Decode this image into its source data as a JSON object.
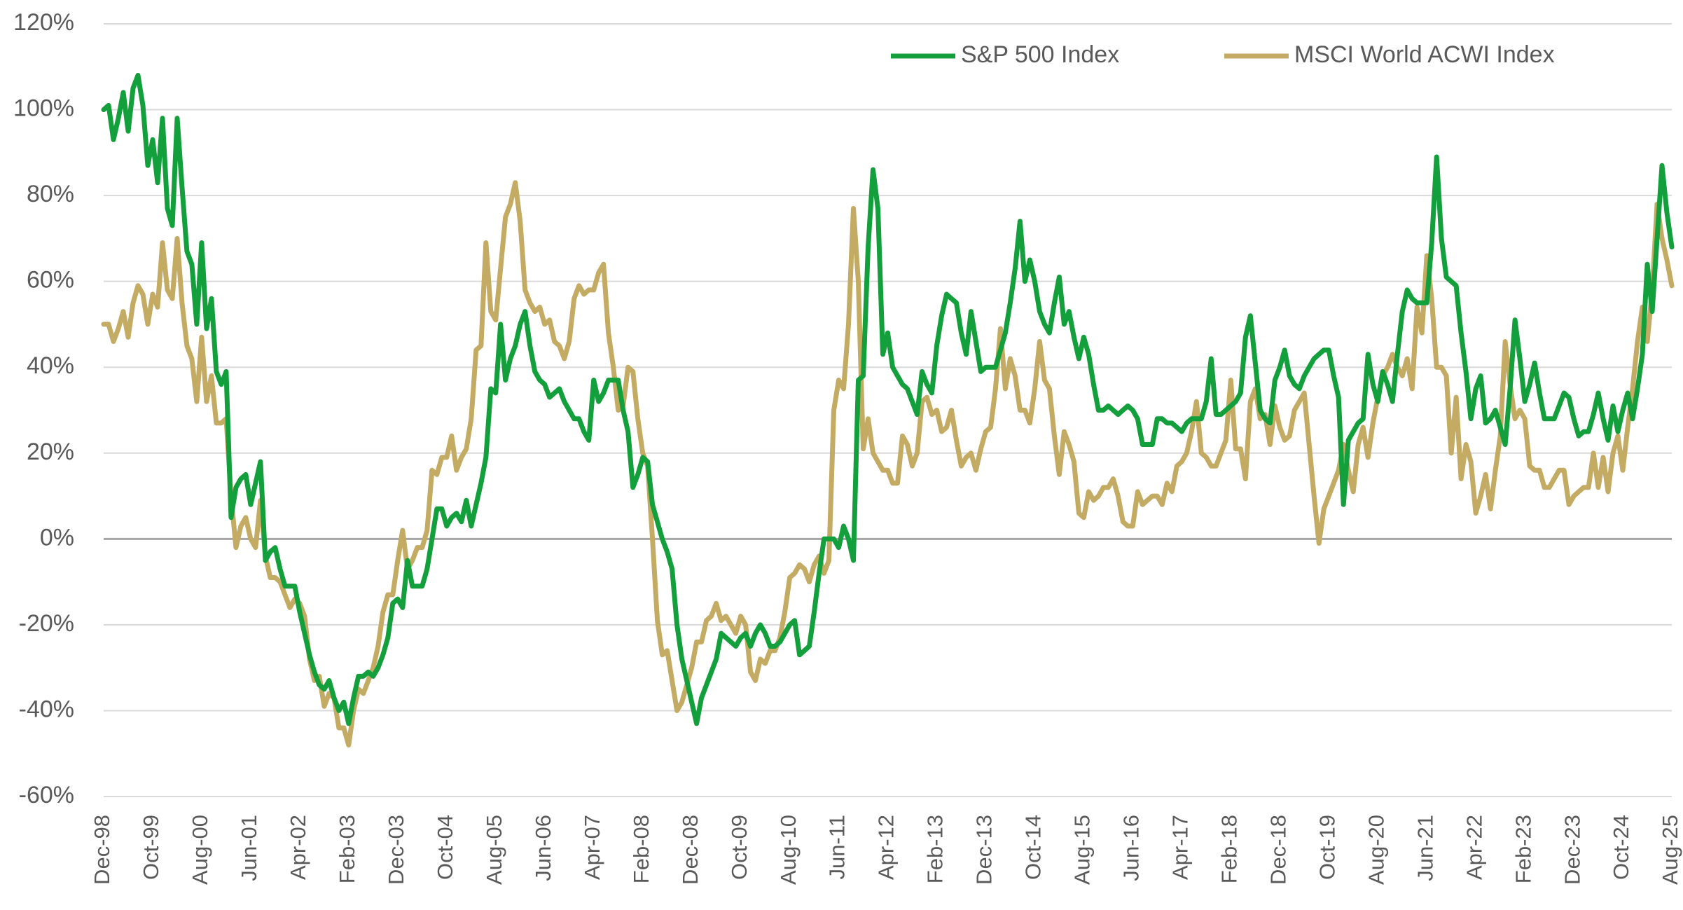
{
  "chart_data": {
    "type": "line",
    "title": "",
    "xlabel": "",
    "ylabel": "",
    "x_start": "Dec-98",
    "x_end": "Aug-25",
    "x_frequency": "monthly",
    "ylim": [
      -60,
      120
    ],
    "y_ticks": [
      120,
      100,
      80,
      60,
      40,
      20,
      0,
      -20,
      -40,
      -60
    ],
    "y_tick_labels": [
      "120%",
      "100%",
      "80%",
      "60%",
      "40%",
      "20%",
      "0%",
      "-20%",
      "-40%",
      "-60%"
    ],
    "x_tick_labels": [
      "Dec-98",
      "Oct-99",
      "Aug-00",
      "Jun-01",
      "Apr-02",
      "Feb-03",
      "Dec-03",
      "Oct-04",
      "Aug-05",
      "Jun-06",
      "Apr-07",
      "Feb-08",
      "Dec-08",
      "Oct-09",
      "Aug-10",
      "Jun-11",
      "Apr-12",
      "Feb-13",
      "Dec-13",
      "Oct-14",
      "Aug-15",
      "Jun-16",
      "Apr-17",
      "Feb-18",
      "Dec-18",
      "Oct-19",
      "Aug-20",
      "Jun-21",
      "Apr-22",
      "Feb-23",
      "Dec-23",
      "Oct-24",
      "Aug-25"
    ],
    "x_tick_interval_months": 10,
    "grid": "horizontal",
    "legend_position": "top-right",
    "zero_line": true,
    "series": [
      {
        "name": "S&P 500 Index",
        "color": "#13a03c",
        "values": [
          100,
          101,
          93,
          98,
          104,
          95,
          105,
          108,
          101,
          87,
          93,
          83,
          98,
          77,
          73,
          98,
          82,
          67,
          64,
          50,
          69,
          49,
          56,
          39,
          36,
          39,
          5,
          12,
          14,
          15,
          8,
          13,
          18,
          -5,
          -3,
          -2,
          -7,
          -11,
          -11,
          -11,
          -17,
          -22,
          -27,
          -31,
          -34,
          -35,
          -33,
          -37,
          -40,
          -38,
          -43,
          -37,
          -32,
          -32,
          -31,
          -32,
          -30,
          -27,
          -23,
          -15,
          -14,
          -16,
          -5,
          -11,
          -11,
          -11,
          -7,
          0,
          7,
          7,
          3,
          5,
          6,
          4,
          9,
          3,
          8,
          13,
          19,
          35,
          34,
          50,
          37,
          42,
          45,
          50,
          53,
          45,
          39,
          37,
          36,
          33,
          34,
          35,
          32,
          30,
          28,
          28,
          25,
          23,
          37,
          32,
          34,
          37,
          37,
          37,
          30,
          25,
          12,
          15,
          19,
          18,
          8,
          4,
          0,
          -3,
          -7,
          -20,
          -28,
          -33,
          -38,
          -43,
          -37,
          -34,
          -31,
          -28,
          -22,
          -23,
          -24,
          -25,
          -23,
          -22,
          -25,
          -22,
          -20,
          -22,
          -25,
          -25,
          -24,
          -22,
          -20,
          -19,
          -27,
          -26,
          -25,
          -17,
          -8,
          0,
          0,
          0,
          -2,
          3,
          0,
          -5,
          37,
          38,
          68,
          86,
          77,
          43,
          48,
          40,
          38,
          36,
          35,
          32,
          29,
          39,
          36,
          34,
          45,
          52,
          57,
          56,
          55,
          48,
          43,
          53,
          46,
          39,
          40,
          40,
          40,
          44,
          48,
          55,
          63,
          74,
          60,
          65,
          60,
          53,
          50,
          48,
          55,
          61,
          50,
          53,
          47,
          42,
          47,
          43,
          36,
          30,
          30,
          31,
          30,
          29,
          30,
          31,
          30,
          28,
          22,
          22,
          22,
          28,
          28,
          27,
          27,
          26,
          25,
          27,
          28,
          28,
          28,
          32,
          42,
          29,
          29,
          30,
          31,
          32,
          34,
          47,
          52,
          41,
          30,
          28,
          27,
          37,
          40,
          44,
          38,
          36,
          35,
          38,
          40,
          42,
          43,
          44,
          44,
          38,
          33,
          8,
          23,
          25,
          27,
          28,
          43,
          36,
          32,
          39,
          36,
          32,
          43,
          53,
          58,
          56,
          55,
          55,
          55,
          69,
          89,
          70,
          61,
          60,
          59,
          48,
          39,
          28,
          35,
          38,
          27,
          28,
          30,
          26,
          22,
          35,
          51,
          42,
          32,
          36,
          41,
          34,
          28,
          28,
          28,
          31,
          34,
          33,
          28,
          24,
          25,
          25,
          29,
          34,
          28,
          23,
          31,
          25,
          30,
          34,
          28,
          35,
          43,
          64,
          53,
          70,
          87,
          76,
          68
        ]
      },
      {
        "name": "MSCI World ACWI Index",
        "color": "#c4ab64",
        "values": [
          50,
          50,
          46,
          49,
          53,
          47,
          55,
          59,
          57,
          50,
          57,
          54,
          69,
          58,
          56,
          70,
          55,
          45,
          42,
          32,
          47,
          32,
          38,
          27,
          27,
          28,
          10,
          -2,
          3,
          5,
          0,
          -2,
          9,
          -4,
          -9,
          -9,
          -10,
          -13,
          -16,
          -14,
          -15,
          -18,
          -28,
          -33,
          -32,
          -39,
          -36,
          -37,
          -44,
          -44,
          -48,
          -40,
          -35,
          -36,
          -33,
          -30,
          -25,
          -17,
          -13,
          -13,
          -5,
          2,
          -7,
          -5,
          -2,
          -2,
          2,
          16,
          15,
          19,
          19,
          24,
          16,
          19,
          21,
          28,
          44,
          45,
          69,
          53,
          51,
          63,
          75,
          78,
          83,
          74,
          58,
          55,
          53,
          54,
          50,
          51,
          46,
          45,
          42,
          46,
          56,
          59,
          57,
          58,
          58,
          62,
          64,
          48,
          40,
          30,
          31,
          40,
          39,
          28,
          20,
          17,
          0,
          -19,
          -27,
          -26,
          -33,
          -40,
          -38,
          -34,
          -30,
          -24,
          -24,
          -19,
          -18,
          -15,
          -19,
          -18,
          -20,
          -22,
          -18,
          -20,
          -31,
          -33,
          -28,
          -29,
          -26,
          -26,
          -23,
          -17,
          -9,
          -8,
          -6,
          -7,
          -10,
          -6,
          -4,
          -8,
          -5,
          30,
          37,
          35,
          50,
          77,
          60,
          21,
          28,
          20,
          18,
          16,
          16,
          13,
          13,
          24,
          22,
          17,
          20,
          32,
          33,
          29,
          30,
          25,
          26,
          30,
          23,
          17,
          19,
          20,
          16,
          21,
          25,
          26,
          35,
          49,
          35,
          42,
          38,
          30,
          30,
          27,
          35,
          46,
          37,
          35,
          24,
          15,
          25,
          22,
          18,
          6,
          5,
          11,
          9,
          10,
          12,
          12,
          14,
          10,
          4,
          3,
          3,
          11,
          8,
          9,
          10,
          10,
          8,
          13,
          11,
          17,
          18,
          20,
          25,
          32,
          20,
          19,
          17,
          17,
          20,
          23,
          37,
          21,
          21,
          14,
          32,
          35,
          28,
          29,
          22,
          31,
          26,
          23,
          24,
          30,
          32,
          34,
          22,
          10,
          -1,
          7,
          10,
          13,
          16,
          22,
          16,
          11,
          22,
          26,
          19,
          27,
          33,
          38,
          40,
          43,
          40,
          38,
          42,
          35,
          54,
          48,
          66,
          56,
          40,
          40,
          38,
          20,
          33,
          14,
          22,
          18,
          6,
          10,
          15,
          7,
          16,
          24,
          46,
          36,
          28,
          30,
          28,
          17,
          16,
          16,
          12,
          12,
          14,
          16,
          16,
          8,
          10,
          11,
          12,
          12,
          20,
          12,
          19,
          11,
          20,
          24,
          16,
          26,
          35,
          46,
          54,
          46,
          58,
          78,
          70,
          65,
          59
        ]
      }
    ]
  }
}
